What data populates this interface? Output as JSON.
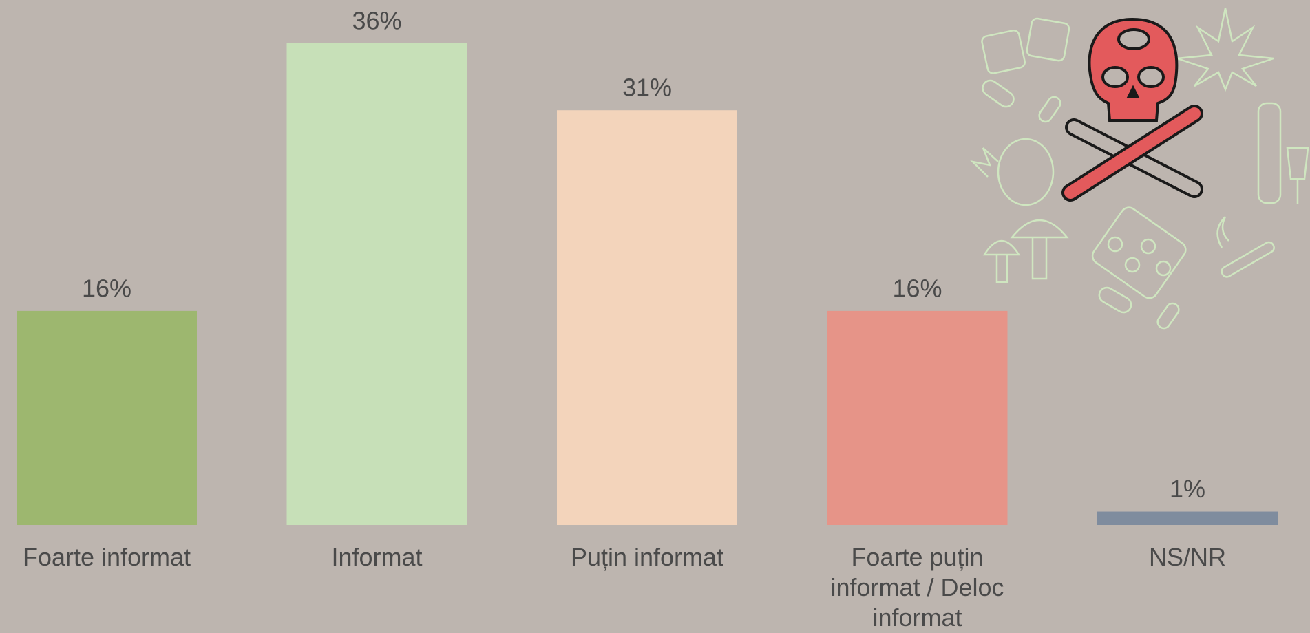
{
  "chart_data": {
    "type": "bar",
    "categories": [
      "Foarte informat",
      "Informat",
      "Puțin informat",
      "Foarte puțin informat / Deloc informat",
      "NS/NR"
    ],
    "values": [
      16,
      36,
      31,
      16,
      1
    ],
    "value_labels": [
      "16%",
      "36%",
      "31%",
      "16%",
      "1%"
    ],
    "colors": [
      "#9db76f",
      "#c7e0b8",
      "#f3d4bb",
      "#e69488",
      "#7f8c9e"
    ]
  }
}
